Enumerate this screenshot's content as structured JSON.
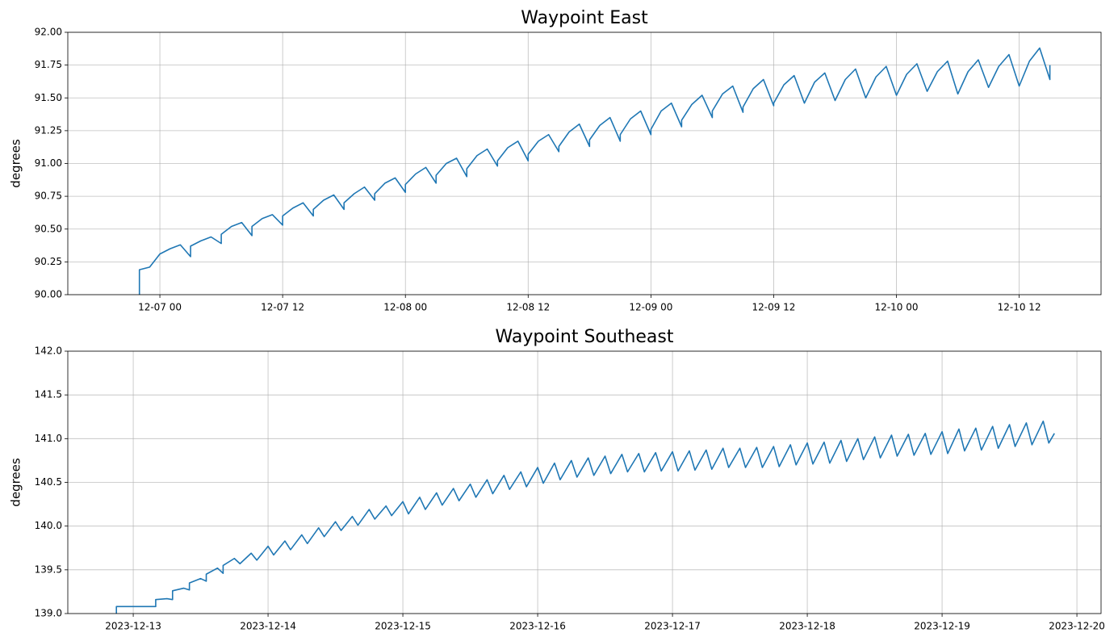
{
  "chart_data": [
    {
      "type": "line",
      "title": "Waypoint East",
      "ylabel": "degrees",
      "color": "#1f77b4",
      "grid": true,
      "xlim": [
        "12-06 15",
        "12-10 20"
      ],
      "xticks": [
        "12-07 00",
        "12-07 12",
        "12-08 00",
        "12-08 12",
        "12-09 00",
        "12-09 12",
        "12-10 00",
        "12-10 12"
      ],
      "ylim": [
        90,
        92
      ],
      "yticks": [
        {
          "value": 90,
          "label": "90.00"
        },
        {
          "value": 90.25,
          "label": "90.25"
        },
        {
          "value": 90.5,
          "label": "90.50"
        },
        {
          "value": 90.75,
          "label": "90.75"
        },
        {
          "value": 91,
          "label": "91.00"
        },
        {
          "value": 91.25,
          "label": "91.25"
        },
        {
          "value": 91.5,
          "label": "91.50"
        },
        {
          "value": 91.75,
          "label": "91.75"
        },
        {
          "value": 92,
          "label": "92.00"
        }
      ],
      "x": [
        "12-06 22",
        "12-06 22",
        "12-06 23",
        "12-07 00",
        "12-07 01",
        "12-07 02",
        "12-07 03",
        "12-07 03",
        "12-07 04",
        "12-07 05",
        "12-07 06",
        "12-07 06",
        "12-07 07",
        "12-07 08",
        "12-07 09",
        "12-07 09",
        "12-07 10",
        "12-07 11",
        "12-07 12",
        "12-07 12",
        "12-07 13",
        "12-07 14",
        "12-07 15",
        "12-07 15",
        "12-07 16",
        "12-07 17",
        "12-07 18",
        "12-07 18",
        "12-07 19",
        "12-07 20",
        "12-07 21",
        "12-07 21",
        "12-07 22",
        "12-07 23",
        "12-08 00",
        "12-08 00",
        "12-08 01",
        "12-08 02",
        "12-08 03",
        "12-08 03",
        "12-08 04",
        "12-08 05",
        "12-08 06",
        "12-08 06",
        "12-08 07",
        "12-08 08",
        "12-08 09",
        "12-08 09",
        "12-08 10",
        "12-08 11",
        "12-08 12",
        "12-08 12",
        "12-08 13",
        "12-08 14",
        "12-08 15",
        "12-08 15",
        "12-08 16",
        "12-08 17",
        "12-08 18",
        "12-08 18",
        "12-08 19",
        "12-08 20",
        "12-08 21",
        "12-08 21",
        "12-08 22",
        "12-08 23",
        "12-09 00",
        "12-09 00",
        "12-09 01",
        "12-09 02",
        "12-09 03",
        "12-09 03",
        "12-09 04",
        "12-09 05",
        "12-09 06",
        "12-09 06",
        "12-09 07",
        "12-09 08",
        "12-09 09",
        "12-09 09",
        "12-09 10",
        "12-09 11",
        "12-09 12",
        "12-09 12",
        "12-09 13",
        "12-09 14",
        "12-09 15",
        "12-09 16",
        "12-09 17",
        "12-09 18",
        "12-09 19",
        "12-09 20",
        "12-09 21",
        "12-09 22",
        "12-09 23",
        "12-10 00",
        "12-10 01",
        "12-10 02",
        "12-10 03",
        "12-10 04",
        "12-10 05",
        "12-10 06",
        "12-10 07",
        "12-10 08",
        "12-10 09",
        "12-10 10",
        "12-10 11",
        "12-10 12",
        "12-10 13",
        "12-10 14",
        "12-10 15",
        "12-10 15"
      ],
      "values": [
        90.0,
        90.19,
        90.21,
        90.31,
        90.35,
        90.38,
        90.29,
        90.37,
        90.41,
        90.44,
        90.39,
        90.46,
        90.52,
        90.55,
        90.45,
        90.52,
        90.58,
        90.61,
        90.53,
        90.6,
        90.66,
        90.7,
        90.6,
        90.65,
        90.72,
        90.76,
        90.65,
        90.7,
        90.77,
        90.82,
        90.72,
        90.77,
        90.85,
        90.89,
        90.78,
        90.84,
        90.92,
        90.97,
        90.85,
        90.91,
        91.0,
        91.04,
        90.9,
        90.96,
        91.06,
        91.11,
        90.98,
        91.02,
        91.12,
        91.17,
        91.02,
        91.07,
        91.17,
        91.22,
        91.09,
        91.13,
        91.24,
        91.3,
        91.13,
        91.18,
        91.29,
        91.35,
        91.17,
        91.22,
        91.34,
        91.4,
        91.22,
        91.26,
        91.4,
        91.46,
        91.28,
        91.33,
        91.45,
        91.52,
        91.35,
        91.4,
        91.53,
        91.59,
        91.39,
        91.43,
        91.57,
        91.64,
        91.44,
        91.46,
        91.6,
        91.67,
        91.46,
        91.62,
        91.69,
        91.48,
        91.64,
        91.72,
        91.5,
        91.66,
        91.74,
        91.52,
        91.68,
        91.76,
        91.55,
        91.7,
        91.78,
        91.53,
        91.7,
        91.79,
        91.58,
        91.74,
        91.83,
        91.59,
        91.78,
        91.88,
        91.64,
        91.75
      ]
    },
    {
      "type": "line",
      "title": "Waypoint Southeast",
      "ylabel": "degrees",
      "color": "#1f77b4",
      "grid": true,
      "xlim": [
        "2023-12-12 12:21",
        "2023-12-20 04:18"
      ],
      "xticks": [
        "2023-12-13",
        "2023-12-14",
        "2023-12-15",
        "2023-12-16",
        "2023-12-17",
        "2023-12-18",
        "2023-12-19",
        "2023-12-20"
      ],
      "ylim": [
        139,
        142
      ],
      "yticks": [
        {
          "value": 139,
          "label": "139.0"
        },
        139.5,
        {
          "value": 140,
          "label": "140.0"
        },
        140.5,
        {
          "value": 141,
          "label": "141.0"
        },
        141.5,
        {
          "value": 142,
          "label": "142.0"
        }
      ],
      "x": [
        "2023-12-12 21:00",
        "2023-12-12 21:00",
        "2023-12-13 04:00",
        "2023-12-13 04:00",
        "2023-12-13 06:00",
        "2023-12-13 07:00",
        "2023-12-13 07:00",
        "2023-12-13 09:00",
        "2023-12-13 10:00",
        "2023-12-13 10:00",
        "2023-12-13 12:00",
        "2023-12-13 13:00",
        "2023-12-13 13:00",
        "2023-12-13 15:00",
        "2023-12-13 16:00",
        "2023-12-13 16:00",
        "2023-12-13 18:00",
        "2023-12-13 19:00",
        "2023-12-13 21:00",
        "2023-12-13 22:00",
        "2023-12-14 00:00",
        "2023-12-14 01:00",
        "2023-12-14 03:00",
        "2023-12-14 04:00",
        "2023-12-14 06:00",
        "2023-12-14 07:00",
        "2023-12-14 09:00",
        "2023-12-14 10:00",
        "2023-12-14 12:00",
        "2023-12-14 13:00",
        "2023-12-14 15:00",
        "2023-12-14 16:00",
        "2023-12-14 18:00",
        "2023-12-14 19:00",
        "2023-12-14 21:00",
        "2023-12-14 22:00",
        "2023-12-15 00:00",
        "2023-12-15 01:00",
        "2023-12-15 03:00",
        "2023-12-15 04:00",
        "2023-12-15 06:00",
        "2023-12-15 07:00",
        "2023-12-15 09:00",
        "2023-12-15 10:00",
        "2023-12-15 12:00",
        "2023-12-15 13:00",
        "2023-12-15 15:00",
        "2023-12-15 16:00",
        "2023-12-15 18:00",
        "2023-12-15 19:00",
        "2023-12-15 21:00",
        "2023-12-15 22:00",
        "2023-12-16 00:00",
        "2023-12-16 01:00",
        "2023-12-16 03:00",
        "2023-12-16 04:00",
        "2023-12-16 06:00",
        "2023-12-16 07:00",
        "2023-12-16 09:00",
        "2023-12-16 10:00",
        "2023-12-16 12:00",
        "2023-12-16 13:00",
        "2023-12-16 15:00",
        "2023-12-16 16:00",
        "2023-12-16 18:00",
        "2023-12-16 19:00",
        "2023-12-16 21:00",
        "2023-12-16 22:00",
        "2023-12-17 00:00",
        "2023-12-17 01:00",
        "2023-12-17 03:00",
        "2023-12-17 04:00",
        "2023-12-17 06:00",
        "2023-12-17 07:00",
        "2023-12-17 09:00",
        "2023-12-17 10:00",
        "2023-12-17 12:00",
        "2023-12-17 13:00",
        "2023-12-17 15:00",
        "2023-12-17 16:00",
        "2023-12-17 18:00",
        "2023-12-17 19:00",
        "2023-12-17 21:00",
        "2023-12-17 22:00",
        "2023-12-18 00:00",
        "2023-12-18 01:00",
        "2023-12-18 03:00",
        "2023-12-18 04:00",
        "2023-12-18 06:00",
        "2023-12-18 07:00",
        "2023-12-18 09:00",
        "2023-12-18 10:00",
        "2023-12-18 12:00",
        "2023-12-18 13:00",
        "2023-12-18 15:00",
        "2023-12-18 16:00",
        "2023-12-18 18:00",
        "2023-12-18 19:00",
        "2023-12-18 21:00",
        "2023-12-18 22:00",
        "2023-12-19 00:00",
        "2023-12-19 01:00",
        "2023-12-19 03:00",
        "2023-12-19 04:00",
        "2023-12-19 06:00",
        "2023-12-19 07:00",
        "2023-12-19 09:00",
        "2023-12-19 10:00",
        "2023-12-19 12:00",
        "2023-12-19 13:00",
        "2023-12-19 15:00",
        "2023-12-19 16:00",
        "2023-12-19 18:00",
        "2023-12-19 19:00",
        "2023-12-19 20:00"
      ],
      "values": [
        139.0,
        139.08,
        139.08,
        139.16,
        139.17,
        139.16,
        139.26,
        139.29,
        139.27,
        139.35,
        139.4,
        139.37,
        139.45,
        139.52,
        139.46,
        139.55,
        139.63,
        139.57,
        139.69,
        139.61,
        139.77,
        139.67,
        139.83,
        139.73,
        139.9,
        139.8,
        139.98,
        139.88,
        140.05,
        139.95,
        140.11,
        140.01,
        140.19,
        140.08,
        140.23,
        140.12,
        140.28,
        140.14,
        140.33,
        140.19,
        140.38,
        140.24,
        140.43,
        140.29,
        140.48,
        140.33,
        140.53,
        140.37,
        140.58,
        140.42,
        140.62,
        140.45,
        140.67,
        140.49,
        140.72,
        140.53,
        140.75,
        140.56,
        140.78,
        140.58,
        140.8,
        140.6,
        140.82,
        140.62,
        140.83,
        140.62,
        140.84,
        140.63,
        140.85,
        140.63,
        140.86,
        140.64,
        140.87,
        140.65,
        140.89,
        140.67,
        140.89,
        140.67,
        140.9,
        140.67,
        140.91,
        140.68,
        140.93,
        140.7,
        140.95,
        140.71,
        140.96,
        140.72,
        140.98,
        140.74,
        141.0,
        140.76,
        141.02,
        140.78,
        141.04,
        140.8,
        141.05,
        140.81,
        141.06,
        140.82,
        141.08,
        140.83,
        141.11,
        140.86,
        141.12,
        140.87,
        141.14,
        140.89,
        141.16,
        140.91,
        141.18,
        140.93,
        141.2,
        140.95,
        141.06
      ]
    }
  ]
}
